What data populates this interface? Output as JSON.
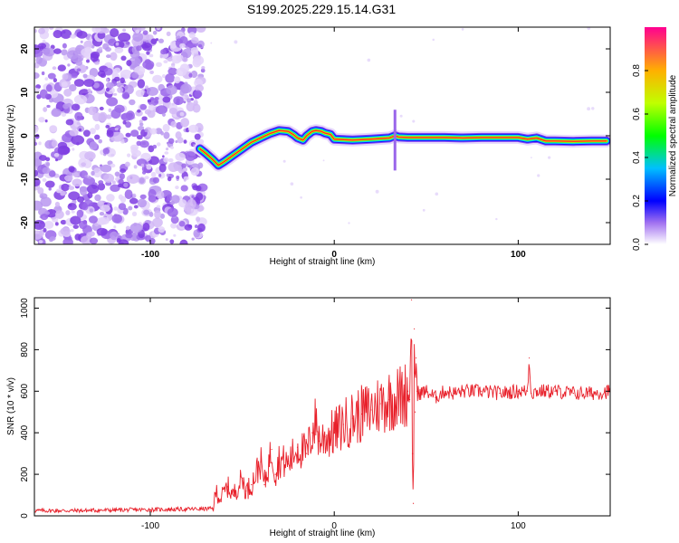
{
  "title": "S199.2025.229.15.14.G31",
  "chart_data": [
    {
      "type": "heatmap",
      "xlabel": "Height of straight line (km)",
      "ylabel": "Frequency (Hz)",
      "xlim": [
        -163,
        150
      ],
      "ylim": [
        -25,
        25
      ],
      "xticks": [
        "-100",
        "0",
        "100"
      ],
      "xtick_values": [
        -100,
        0,
        100
      ],
      "yticks": [
        "20",
        "10",
        "0",
        "-10",
        "-20"
      ],
      "ytick_values": [
        20,
        10,
        0,
        -10,
        -20
      ],
      "colorbar": {
        "label": "Normalized spectral amplitude",
        "range": [
          0,
          1
        ],
        "ticks": [
          "0.0",
          "0.2",
          "0.4",
          "0.6",
          "0.8"
        ],
        "tick_values": [
          0.0,
          0.2,
          0.4,
          0.6,
          0.8
        ]
      },
      "noise_region_x": [
        -163,
        -73
      ],
      "track": {
        "x": [
          -73,
          -70,
          -66,
          -63,
          -60,
          -55,
          -50,
          -45,
          -40,
          -35,
          -30,
          -25,
          -22,
          -20,
          -17,
          -15,
          -12,
          -10,
          -7,
          -5,
          -2,
          0,
          10,
          20,
          30,
          33,
          35,
          40,
          50,
          60,
          70,
          80,
          90,
          100,
          105,
          110,
          115,
          120,
          130,
          140,
          148
        ],
        "y": [
          -3,
          -4,
          -5.5,
          -6.8,
          -6,
          -4.5,
          -3,
          -1.5,
          -0.5,
          0.5,
          1.2,
          1,
          0.2,
          -0.5,
          -1,
          0,
          1,
          1.2,
          1,
          0.6,
          0.3,
          -0.8,
          -1,
          -0.8,
          -0.5,
          0,
          -0.3,
          -0.4,
          -0.4,
          -0.4,
          -0.5,
          -0.4,
          -0.4,
          -0.4,
          -0.8,
          -0.5,
          -1.2,
          -1.2,
          -1.3,
          -1.2,
          -1.2
        ]
      }
    },
    {
      "type": "line",
      "xlabel": "Height of straight line (km)",
      "ylabel": "SNR (10 * v/v)",
      "xlim": [
        -163,
        150
      ],
      "ylim": [
        0,
        1050
      ],
      "xticks": [
        "-100",
        "0",
        "100"
      ],
      "xtick_values": [
        -100,
        0,
        100
      ],
      "yticks": [
        "0",
        "200",
        "400",
        "600",
        "800",
        "1000"
      ],
      "ytick_values": [
        0,
        200,
        400,
        600,
        800,
        1000
      ],
      "series": [
        {
          "name": "SNR",
          "color": "#e8202a",
          "x": [
            -163,
            -140,
            -120,
            -100,
            -80,
            -66,
            -64,
            -62,
            -58,
            -55,
            -50,
            -48,
            -45,
            -40,
            -38,
            -34,
            -32,
            -30,
            -25,
            -20,
            -15,
            -12,
            -10,
            -8,
            -5,
            0,
            5,
            10,
            15,
            20,
            25,
            30,
            35,
            38,
            40,
            41,
            42,
            42.5,
            43,
            43.5,
            44,
            44.5,
            45,
            46,
            50,
            55,
            60,
            65,
            70,
            80,
            90,
            100,
            105,
            106,
            107,
            110,
            120,
            130,
            140,
            150
          ],
          "y": [
            25,
            25,
            28,
            30,
            32,
            35,
            120,
            80,
            140,
            100,
            180,
            120,
            150,
            260,
            150,
            320,
            200,
            270,
            250,
            330,
            300,
            400,
            460,
            360,
            380,
            400,
            440,
            470,
            490,
            510,
            540,
            560,
            570,
            580,
            600,
            560,
            1040,
            300,
            60,
            900,
            500,
            760,
            600,
            590,
            600,
            570,
            600,
            590,
            600,
            600,
            590,
            600,
            600,
            760,
            590,
            600,
            600,
            590,
            590,
            600
          ]
        }
      ]
    }
  ]
}
